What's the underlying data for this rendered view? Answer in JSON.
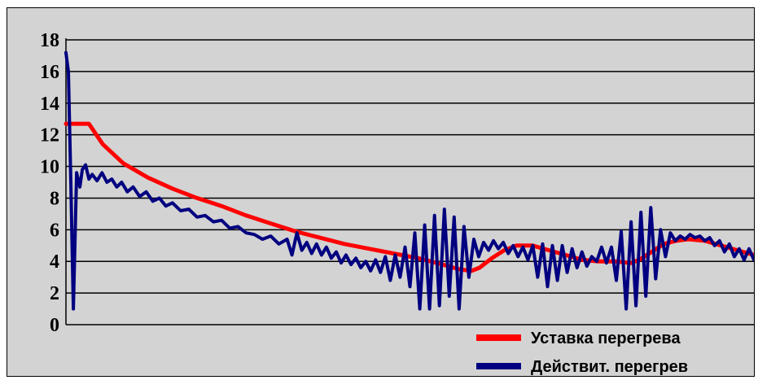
{
  "chart_data": {
    "type": "line",
    "title": "",
    "xlabel": "",
    "ylabel": "",
    "ylim": [
      0,
      18
    ],
    "yticks": [
      "0",
      "2",
      "4",
      "6",
      "8",
      "10",
      "12",
      "14",
      "16",
      "18"
    ],
    "grid": true,
    "legend_position": "bottom-right",
    "series": [
      {
        "name": "Уставка перегрева",
        "color": "#ff0000",
        "points": [
          [
            0,
            12.7
          ],
          [
            28,
            12.7
          ],
          [
            45,
            11.4
          ],
          [
            70,
            10.2
          ],
          [
            100,
            9.3
          ],
          [
            130,
            8.6
          ],
          [
            160,
            8.0
          ],
          [
            190,
            7.5
          ],
          [
            220,
            6.9
          ],
          [
            250,
            6.4
          ],
          [
            280,
            5.9
          ],
          [
            310,
            5.5
          ],
          [
            340,
            5.1
          ],
          [
            370,
            4.8
          ],
          [
            400,
            4.5
          ],
          [
            430,
            4.2
          ],
          [
            460,
            3.8
          ],
          [
            480,
            3.5
          ],
          [
            495,
            3.4
          ],
          [
            505,
            3.6
          ],
          [
            520,
            4.2
          ],
          [
            535,
            4.7
          ],
          [
            550,
            5.0
          ],
          [
            570,
            5.0
          ],
          [
            590,
            4.7
          ],
          [
            610,
            4.4
          ],
          [
            630,
            4.1
          ],
          [
            650,
            4.0
          ],
          [
            670,
            4.0
          ],
          [
            690,
            3.9
          ],
          [
            700,
            4.1
          ],
          [
            715,
            4.6
          ],
          [
            730,
            5.1
          ],
          [
            745,
            5.3
          ],
          [
            760,
            5.4
          ],
          [
            780,
            5.3
          ],
          [
            800,
            5.0
          ],
          [
            820,
            4.7
          ],
          [
            840,
            4.4
          ]
        ]
      },
      {
        "name": "Действит. перегрев",
        "color": "#000080",
        "points": [
          [
            0,
            17.2
          ],
          [
            3,
            16.0
          ],
          [
            6,
            9.0
          ],
          [
            9,
            1.0
          ],
          [
            13,
            9.6
          ],
          [
            17,
            8.7
          ],
          [
            20,
            9.8
          ],
          [
            24,
            10.1
          ],
          [
            28,
            9.2
          ],
          [
            32,
            9.5
          ],
          [
            38,
            9.1
          ],
          [
            44,
            9.6
          ],
          [
            50,
            9.0
          ],
          [
            56,
            9.2
          ],
          [
            62,
            8.7
          ],
          [
            68,
            9.0
          ],
          [
            75,
            8.4
          ],
          [
            82,
            8.7
          ],
          [
            90,
            8.1
          ],
          [
            98,
            8.4
          ],
          [
            106,
            7.8
          ],
          [
            114,
            8.0
          ],
          [
            122,
            7.5
          ],
          [
            130,
            7.7
          ],
          [
            140,
            7.2
          ],
          [
            150,
            7.3
          ],
          [
            160,
            6.8
          ],
          [
            170,
            6.9
          ],
          [
            180,
            6.5
          ],
          [
            190,
            6.6
          ],
          [
            200,
            6.1
          ],
          [
            210,
            6.2
          ],
          [
            220,
            5.8
          ],
          [
            230,
            5.7
          ],
          [
            240,
            5.4
          ],
          [
            250,
            5.6
          ],
          [
            260,
            5.1
          ],
          [
            270,
            5.4
          ],
          [
            276,
            4.4
          ],
          [
            282,
            5.8
          ],
          [
            288,
            4.7
          ],
          [
            294,
            5.2
          ],
          [
            300,
            4.5
          ],
          [
            306,
            5.1
          ],
          [
            312,
            4.4
          ],
          [
            318,
            4.9
          ],
          [
            324,
            4.2
          ],
          [
            330,
            4.6
          ],
          [
            336,
            3.9
          ],
          [
            342,
            4.4
          ],
          [
            348,
            3.8
          ],
          [
            354,
            4.2
          ],
          [
            360,
            3.6
          ],
          [
            366,
            4.0
          ],
          [
            372,
            3.4
          ],
          [
            378,
            4.1
          ],
          [
            384,
            3.3
          ],
          [
            390,
            4.3
          ],
          [
            396,
            2.8
          ],
          [
            402,
            4.4
          ],
          [
            408,
            3.0
          ],
          [
            414,
            4.9
          ],
          [
            420,
            2.4
          ],
          [
            426,
            5.8
          ],
          [
            432,
            1.0
          ],
          [
            438,
            6.3
          ],
          [
            444,
            1.0
          ],
          [
            450,
            6.9
          ],
          [
            456,
            1.2
          ],
          [
            462,
            7.3
          ],
          [
            468,
            1.8
          ],
          [
            474,
            6.8
          ],
          [
            480,
            1.0
          ],
          [
            486,
            6.2
          ],
          [
            492,
            3.0
          ],
          [
            498,
            5.4
          ],
          [
            504,
            4.3
          ],
          [
            510,
            5.2
          ],
          [
            516,
            4.7
          ],
          [
            522,
            5.3
          ],
          [
            528,
            4.8
          ],
          [
            534,
            5.2
          ],
          [
            540,
            4.5
          ],
          [
            546,
            5.0
          ],
          [
            552,
            4.3
          ],
          [
            558,
            4.9
          ],
          [
            564,
            4.1
          ],
          [
            570,
            5.0
          ],
          [
            576,
            3.0
          ],
          [
            582,
            5.1
          ],
          [
            588,
            2.4
          ],
          [
            594,
            5.0
          ],
          [
            600,
            2.8
          ],
          [
            606,
            5.0
          ],
          [
            612,
            3.3
          ],
          [
            618,
            4.8
          ],
          [
            624,
            3.6
          ],
          [
            630,
            4.6
          ],
          [
            636,
            3.7
          ],
          [
            642,
            4.3
          ],
          [
            648,
            4.0
          ],
          [
            654,
            4.9
          ],
          [
            660,
            3.9
          ],
          [
            666,
            4.9
          ],
          [
            672,
            2.8
          ],
          [
            678,
            5.9
          ],
          [
            684,
            1.0
          ],
          [
            690,
            6.5
          ],
          [
            696,
            1.2
          ],
          [
            702,
            7.1
          ],
          [
            708,
            1.8
          ],
          [
            714,
            7.4
          ],
          [
            720,
            2.9
          ],
          [
            726,
            6.0
          ],
          [
            732,
            4.3
          ],
          [
            738,
            5.8
          ],
          [
            744,
            5.3
          ],
          [
            750,
            5.6
          ],
          [
            756,
            5.4
          ],
          [
            762,
            5.7
          ],
          [
            768,
            5.5
          ],
          [
            774,
            5.6
          ],
          [
            780,
            5.3
          ],
          [
            786,
            5.5
          ],
          [
            792,
            5.0
          ],
          [
            798,
            5.3
          ],
          [
            804,
            4.6
          ],
          [
            810,
            5.1
          ],
          [
            816,
            4.3
          ],
          [
            822,
            4.8
          ],
          [
            828,
            4.1
          ],
          [
            834,
            4.8
          ],
          [
            840,
            4.1
          ]
        ]
      }
    ]
  }
}
